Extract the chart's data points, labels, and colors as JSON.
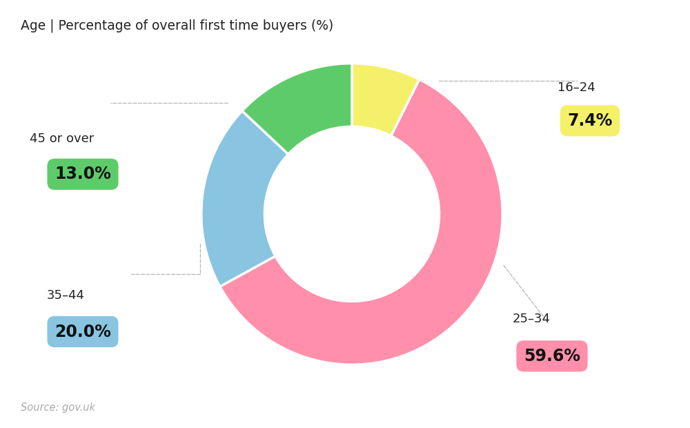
{
  "title": "Age | Percentage of overall first time buyers (%)",
  "source": "Source: gov.uk",
  "slices": [
    {
      "label": "16–24",
      "value": 7.4,
      "color": "#f5f06a"
    },
    {
      "label": "25–34",
      "value": 59.6,
      "color": "#ff8fab"
    },
    {
      "label": "35–44",
      "value": 20.0,
      "color": "#89c4e1"
    },
    {
      "label": "45 or over",
      "value": 13.0,
      "color": "#5ecb6b"
    }
  ],
  "background_color": "#ffffff",
  "donut_width": 0.42,
  "start_angle": 90,
  "badge_colors": {
    "16–24": "#f5f06a",
    "25–34": "#ff8fab",
    "35–44": "#89c4e1",
    "45 or over": "#5ecb6b"
  },
  "labels": {
    "16–24": {
      "label_fig": [
        0.835,
        0.795
      ],
      "pct_fig": [
        0.855,
        0.718
      ],
      "pct": "7.4%",
      "line": [
        [
          0.636,
          0.812
        ],
        [
          0.836,
          0.812
        ],
        [
          0.836,
          0.812
        ]
      ]
    },
    "25–34": {
      "label_fig": [
        0.77,
        0.255
      ],
      "pct_fig": [
        0.8,
        0.168
      ],
      "pct": "59.6%",
      "line": [
        [
          0.73,
          0.38
        ],
        [
          0.79,
          0.255
        ]
      ]
    },
    "35–44": {
      "label_fig": [
        0.095,
        0.31
      ],
      "pct_fig": [
        0.12,
        0.225
      ],
      "pct": "20.0%",
      "line": [
        [
          0.29,
          0.43
        ],
        [
          0.29,
          0.36
        ],
        [
          0.19,
          0.36
        ]
      ]
    },
    "45 or over": {
      "label_fig": [
        0.09,
        0.675
      ],
      "pct_fig": [
        0.12,
        0.593
      ],
      "pct": "13.0%",
      "line": [
        [
          0.33,
          0.76
        ],
        [
          0.33,
          0.76
        ],
        [
          0.16,
          0.76
        ]
      ]
    }
  }
}
